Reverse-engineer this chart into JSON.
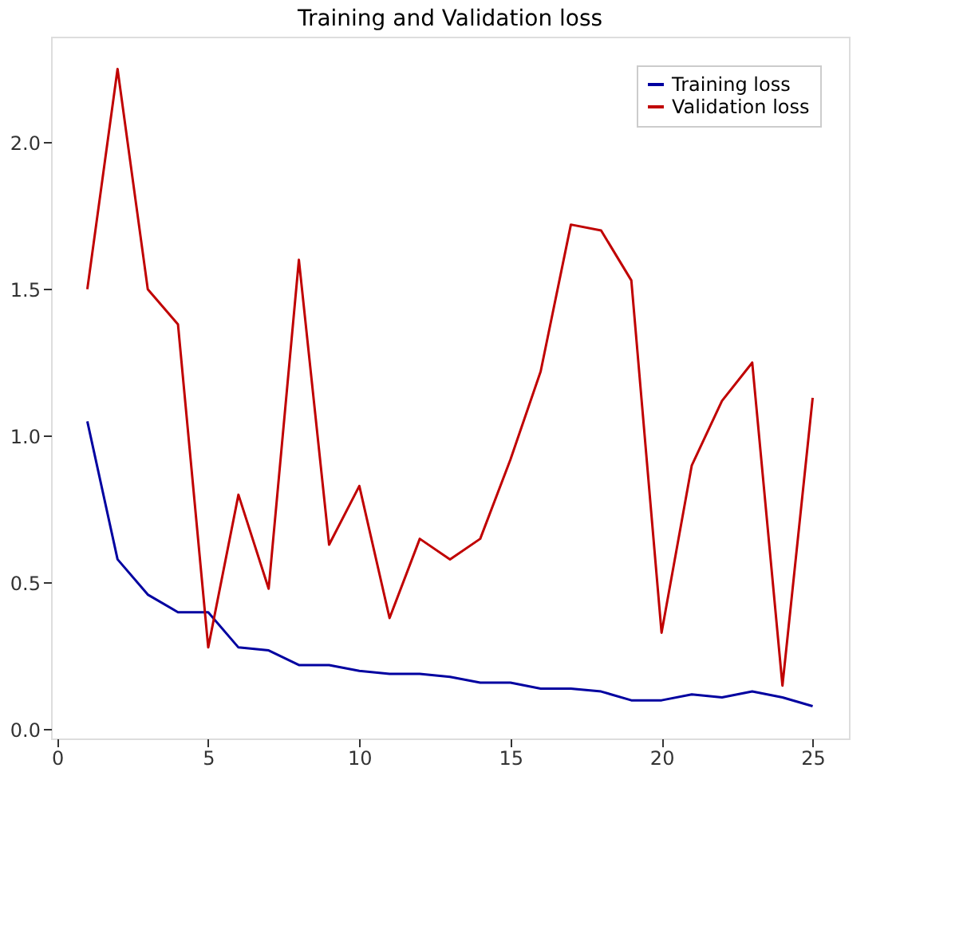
{
  "chart_data": {
    "type": "line",
    "title": "Training and Validation loss",
    "x": [
      1,
      2,
      3,
      4,
      5,
      6,
      7,
      8,
      9,
      10,
      11,
      12,
      13,
      14,
      15,
      16,
      17,
      18,
      19,
      20,
      21,
      22,
      23,
      24,
      25
    ],
    "series": [
      {
        "name": "Training loss",
        "color": "#0000a0",
        "values": [
          1.05,
          0.58,
          0.46,
          0.4,
          0.4,
          0.28,
          0.27,
          0.22,
          0.22,
          0.2,
          0.19,
          0.19,
          0.18,
          0.16,
          0.16,
          0.14,
          0.14,
          0.13,
          0.1,
          0.1,
          0.12,
          0.11,
          0.13,
          0.11,
          0.08
        ]
      },
      {
        "name": "Validation loss",
        "color": "#c00000",
        "values": [
          1.5,
          2.25,
          1.5,
          1.38,
          0.28,
          0.8,
          0.48,
          1.6,
          0.63,
          0.83,
          0.38,
          0.65,
          0.58,
          0.65,
          0.92,
          1.22,
          1.72,
          1.7,
          1.53,
          0.33,
          0.9,
          1.12,
          1.25,
          0.15,
          1.13
        ]
      }
    ],
    "xlim": [
      -0.2,
      26.2
    ],
    "ylim": [
      -0.03,
      2.36
    ],
    "xticks": [
      0,
      5,
      10,
      15,
      20,
      25
    ],
    "yticks": [
      {
        "value": 0,
        "label": "0.0"
      },
      0.5,
      {
        "value": 1,
        "label": "1.0"
      },
      1.5,
      {
        "value": 2,
        "label": "2.0"
      }
    ],
    "grid": false,
    "legend": "top right",
    "marker": "none",
    "line_style": "solid"
  }
}
